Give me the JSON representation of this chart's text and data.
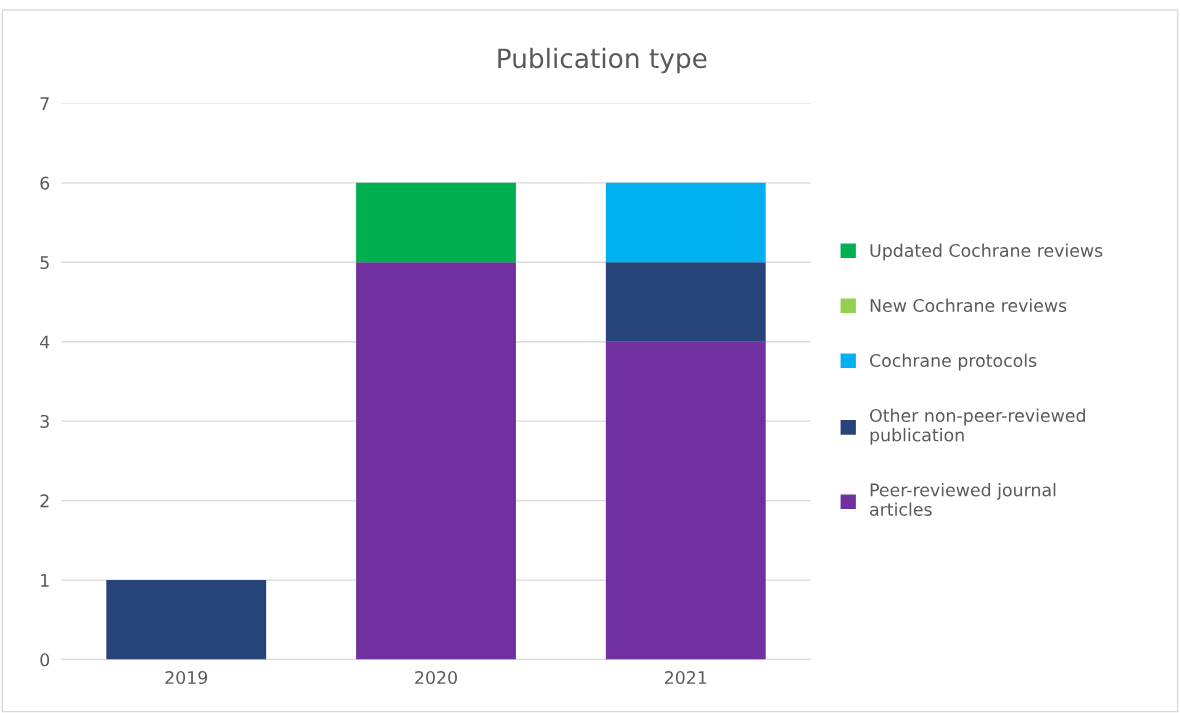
{
  "chart_data": {
    "type": "bar",
    "title": "Publication type",
    "categories": [
      "2019",
      "2020",
      "2021"
    ],
    "stacked": true,
    "series": [
      {
        "name": "Peer-reviewed journal articles",
        "color": "#7030a0",
        "values": [
          0,
          5,
          4
        ]
      },
      {
        "name": "Other non-peer-reviewed publication",
        "color": "#264478",
        "values": [
          1,
          0,
          1
        ]
      },
      {
        "name": "Cochrane protocols",
        "color": "#00b0f0",
        "values": [
          0,
          0,
          1
        ]
      },
      {
        "name": "New Cochrane reviews",
        "color": "#92d050",
        "values": [
          0,
          0,
          0
        ]
      },
      {
        "name": "Updated Cochrane reviews",
        "color": "#00b050",
        "values": [
          0,
          1,
          0
        ]
      }
    ],
    "ylim": [
      0,
      7
    ],
    "yticks": [
      0,
      1,
      2,
      3,
      4,
      5,
      6,
      7
    ],
    "grid": "y",
    "legend": "right"
  }
}
